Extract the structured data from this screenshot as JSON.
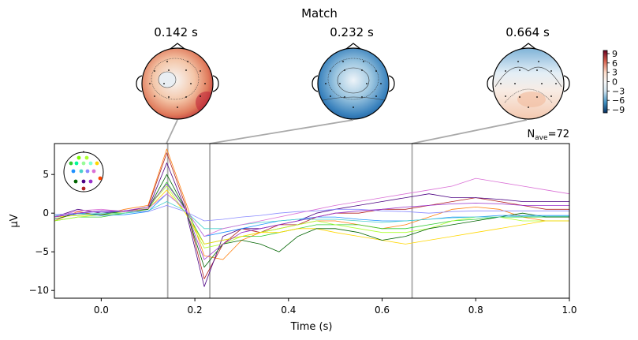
{
  "figure": {
    "title": "Match",
    "nave_label": "N",
    "nave_sub": "ave",
    "nave_value": "=72"
  },
  "topomaps": [
    {
      "time_label": "0.142 s",
      "time": 0.142,
      "pattern": "positive"
    },
    {
      "time_label": "0.232 s",
      "time": 0.232,
      "pattern": "negative"
    },
    {
      "time_label": "0.664 s",
      "time": 0.664,
      "pattern": "mixed"
    }
  ],
  "colorbar": {
    "ticks": [
      "9",
      "6",
      "3",
      "0",
      "−3",
      "−6",
      "−9"
    ],
    "range": [
      -10,
      10
    ],
    "colors": [
      "#67001f",
      "#d6604d",
      "#fddbc7",
      "#f7f7f7",
      "#d1e5f0",
      "#4393c3",
      "#053061"
    ]
  },
  "chart_data": {
    "type": "line",
    "title": "",
    "xlabel": "Time (s)",
    "ylabel": "µV",
    "xlim": [
      -0.1,
      1.0
    ],
    "ylim": [
      -11,
      9
    ],
    "xticks": [
      0.0,
      0.2,
      0.4,
      0.6,
      0.8,
      1.0
    ],
    "xtick_labels": [
      "0.0",
      "0.2",
      "0.4",
      "0.6",
      "0.8",
      "1.0"
    ],
    "yticks": [
      5,
      0,
      -5,
      -10
    ],
    "ytick_labels": [
      "5",
      "0",
      "−5",
      "−10"
    ],
    "grid": false,
    "highlight_times": [
      0.142,
      0.232,
      0.664
    ],
    "x": [
      -0.1,
      -0.05,
      0.0,
      0.05,
      0.1,
      0.14,
      0.18,
      0.22,
      0.26,
      0.3,
      0.34,
      0.38,
      0.42,
      0.46,
      0.5,
      0.55,
      0.6,
      0.65,
      0.7,
      0.75,
      0.8,
      0.85,
      0.9,
      0.95,
      1.0
    ],
    "series": [
      {
        "color": "#ff7f0e",
        "values": [
          -1.0,
          0.2,
          -0.3,
          0.5,
          1.0,
          8.3,
          1.5,
          -5.5,
          -6.0,
          -3.5,
          -2.5,
          -2.0,
          -1.5,
          -1.0,
          -1.0,
          -1.5,
          -2.0,
          -1.5,
          -0.5,
          0.5,
          0.8,
          0.5,
          -0.5,
          -1.0,
          -1.0
        ]
      },
      {
        "color": "#b22222",
        "values": [
          -0.5,
          0.0,
          0.3,
          0.2,
          0.8,
          7.8,
          1.0,
          -8.5,
          -4.0,
          -2.0,
          -2.5,
          -1.5,
          -1.5,
          -0.5,
          0.0,
          0.0,
          0.5,
          0.5,
          1.0,
          1.5,
          2.0,
          1.5,
          1.0,
          0.5,
          0.5
        ]
      },
      {
        "color": "#4b0082",
        "values": [
          -0.5,
          0.5,
          0.0,
          0.3,
          0.5,
          6.5,
          0.5,
          -9.5,
          -3.0,
          -2.0,
          -2.0,
          -1.5,
          -1.0,
          0.0,
          0.5,
          1.0,
          1.5,
          2.0,
          2.5,
          2.0,
          2.0,
          1.8,
          1.5,
          1.5,
          1.5
        ]
      },
      {
        "color": "#32cd32",
        "values": [
          -1.0,
          -0.5,
          -0.5,
          0.0,
          0.5,
          4.0,
          0.5,
          -4.0,
          -3.5,
          -3.0,
          -3.0,
          -2.5,
          -2.0,
          -1.5,
          -1.5,
          -1.5,
          -2.0,
          -2.0,
          -1.5,
          -1.0,
          -0.8,
          -0.5,
          -0.5,
          -0.5,
          -0.5
        ]
      },
      {
        "color": "#adff2f",
        "values": [
          -1.0,
          -0.5,
          -0.2,
          0.0,
          0.8,
          3.5,
          0.0,
          -4.5,
          -4.0,
          -3.0,
          -2.5,
          -2.0,
          -1.5,
          -1.0,
          -1.5,
          -2.0,
          -2.5,
          -2.5,
          -2.0,
          -1.0,
          -0.5,
          -0.5,
          -1.0,
          -1.0,
          -1.0
        ]
      },
      {
        "color": "#ffd700",
        "values": [
          -0.5,
          -0.3,
          -0.2,
          0.2,
          0.5,
          3.0,
          0.0,
          -4.0,
          -3.5,
          -3.0,
          -2.5,
          -2.5,
          -2.0,
          -2.0,
          -2.5,
          -3.0,
          -3.5,
          -4.0,
          -3.5,
          -3.0,
          -2.5,
          -2.0,
          -1.5,
          -1.0,
          -1.0
        ]
      },
      {
        "color": "#006400",
        "values": [
          -0.8,
          0.0,
          -0.2,
          0.3,
          0.5,
          5.0,
          0.5,
          -7.0,
          -4.0,
          -3.5,
          -4.0,
          -5.0,
          -3.0,
          -2.0,
          -2.0,
          -2.5,
          -3.5,
          -3.0,
          -2.0,
          -1.5,
          -1.0,
          -0.5,
          0.0,
          -0.5,
          -0.5
        ]
      },
      {
        "color": "#1e90ff",
        "values": [
          -0.5,
          0.0,
          -0.3,
          -0.2,
          0.2,
          2.5,
          0.5,
          -3.0,
          -2.5,
          -2.0,
          -1.5,
          -1.0,
          -0.8,
          -0.5,
          -0.5,
          -0.8,
          -1.0,
          -1.0,
          -0.8,
          -0.5,
          -0.5,
          -0.3,
          -0.3,
          -0.3,
          -0.3
        ]
      },
      {
        "color": "#48d1cc",
        "values": [
          -0.3,
          -0.2,
          0.0,
          0.0,
          0.3,
          1.5,
          0.3,
          -2.0,
          -2.0,
          -1.5,
          -1.2,
          -1.0,
          -0.8,
          -0.8,
          -0.8,
          -1.0,
          -1.2,
          -1.0,
          -0.8,
          -0.6,
          -0.5,
          -0.5,
          -0.4,
          -0.4,
          -0.4
        ]
      },
      {
        "color": "#8a8aff",
        "values": [
          -0.2,
          0.0,
          0.2,
          0.2,
          0.2,
          1.0,
          0.2,
          -1.0,
          -0.8,
          -0.5,
          -0.3,
          0.0,
          0.2,
          0.3,
          0.5,
          0.5,
          0.3,
          0.2,
          0.0,
          0.2,
          0.3,
          0.3,
          0.3,
          0.3,
          0.3
        ]
      },
      {
        "color": "#da70d6",
        "values": [
          -0.5,
          0.3,
          0.5,
          0.2,
          0.6,
          2.5,
          0.5,
          -3.0,
          -2.0,
          -1.5,
          -1.0,
          -0.5,
          0.0,
          0.5,
          1.0,
          1.5,
          2.0,
          2.5,
          3.0,
          3.5,
          4.5,
          4.0,
          3.5,
          3.0,
          2.5
        ]
      },
      {
        "color": "#9932cc",
        "values": [
          -0.5,
          0.0,
          0.3,
          0.3,
          0.8,
          3.8,
          0.5,
          -6.0,
          -4.0,
          -2.5,
          -2.0,
          -1.5,
          -1.0,
          -0.5,
          0.0,
          0.3,
          0.5,
          0.8,
          1.0,
          1.2,
          1.3,
          1.2,
          1.0,
          1.0,
          1.0
        ]
      }
    ]
  },
  "sensor_inset": {
    "dots": [
      {
        "c": "#7CFC00"
      },
      {
        "c": "#ADFF2F"
      },
      {
        "c": "#32CD32"
      },
      {
        "c": "#00FA9A"
      },
      {
        "c": "#98FB98"
      },
      {
        "c": "#7FFFD4"
      },
      {
        "c": "#FFD700"
      },
      {
        "c": "#1E90FF"
      },
      {
        "c": "#48D1CC"
      },
      {
        "c": "#8A8AFF"
      },
      {
        "c": "#DA70D6"
      },
      {
        "c": "#006400"
      },
      {
        "c": "#4B0082"
      },
      {
        "c": "#9932CC"
      },
      {
        "c": "#FF4500"
      },
      {
        "c": "#B22222"
      }
    ]
  }
}
